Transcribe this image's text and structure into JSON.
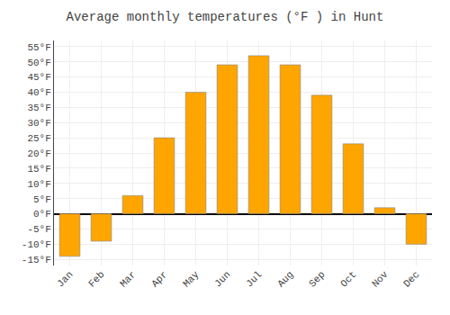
{
  "chart_data": {
    "type": "bar",
    "title": "Average monthly temperatures (°F ) in Hunt",
    "categories": [
      "Jan",
      "Feb",
      "Mar",
      "Apr",
      "May",
      "Jun",
      "Jul",
      "Aug",
      "Sep",
      "Oct",
      "Nov",
      "Dec"
    ],
    "values": [
      -14,
      -9,
      6,
      25,
      40,
      49,
      52,
      49,
      39,
      23,
      2,
      -10
    ],
    "color": "#FFA500",
    "ylim": [
      -17,
      57
    ],
    "yticks": [
      {
        "value": -15,
        "label": "-15°F"
      },
      {
        "value": -10,
        "label": "-10°F"
      },
      {
        "value": -5,
        "label": "-5°F"
      },
      {
        "value": 0,
        "label": "0°F"
      },
      {
        "value": 5,
        "label": "5°F"
      },
      {
        "value": 10,
        "label": "10°F"
      },
      {
        "value": 15,
        "label": "15°F"
      },
      {
        "value": 20,
        "label": "20°F"
      },
      {
        "value": 25,
        "label": "25°F"
      },
      {
        "value": 30,
        "label": "30°F"
      },
      {
        "value": 35,
        "label": "35°F"
      },
      {
        "value": 40,
        "label": "40°F"
      },
      {
        "value": 45,
        "label": "45°F"
      },
      {
        "value": 50,
        "label": "50°F"
      },
      {
        "value": 55,
        "label": "55°F"
      }
    ],
    "grid": true
  }
}
